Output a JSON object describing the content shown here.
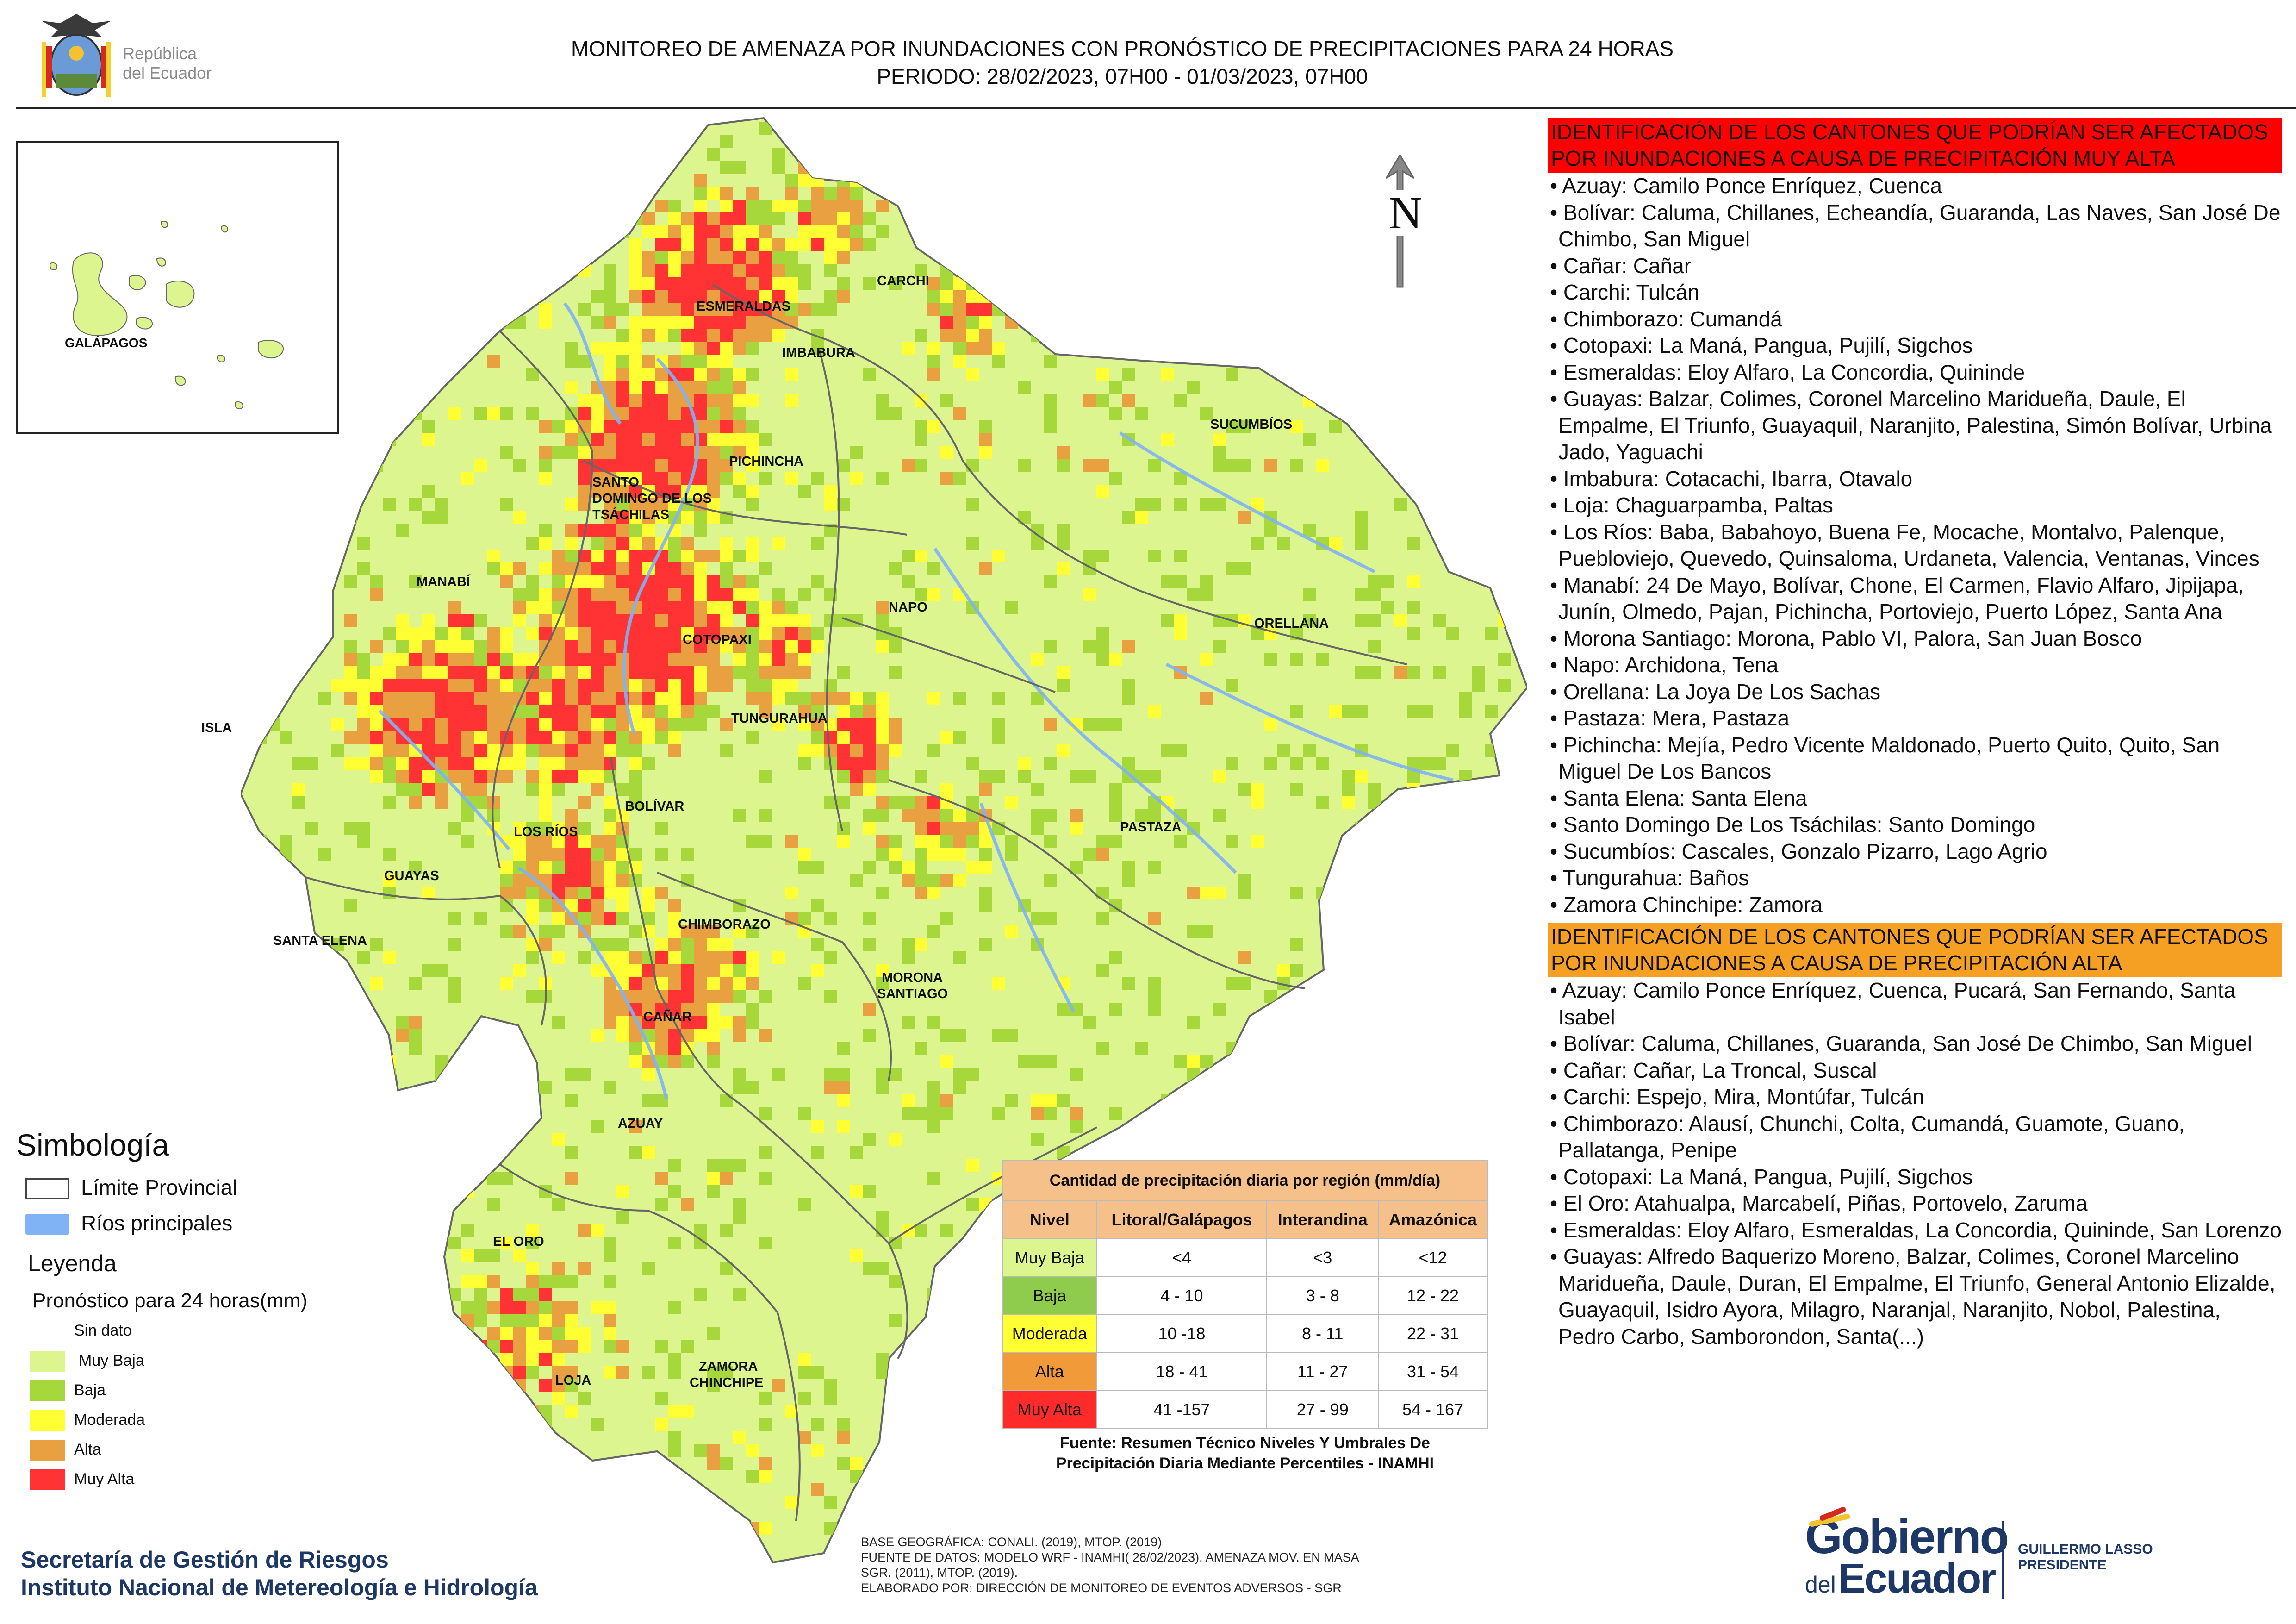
{
  "header": {
    "title_line1": "MONITOREO DE AMENAZA POR INUNDACIONES  CON PRONÓSTICO DE  PRECIPITACIONES PARA 24 HORAS",
    "title_line2": "PERIODO: 28/02/2023, 07H00 - 01/03/2023, 07H00",
    "logo_text_line1": "República",
    "logo_text_line2": "del Ecuador"
  },
  "inset": {
    "label": "GALÁPAGOS"
  },
  "north_label": "N",
  "map": {
    "provinces": [
      "CARCHI",
      "ESMERALDAS",
      "IMBABURA",
      "SUCUMBÍOS",
      "PICHINCHA",
      "SANTO",
      "DOMINGO DE LOS",
      "TSÁCHILAS",
      "MANABÍ",
      "NAPO",
      "ORELLANA",
      "COTOPAXI",
      "ISLA",
      "TUNGURAHUA",
      "BOLÍVAR",
      "PASTAZA",
      "LOS RÍOS",
      "GUAYAS",
      "CHIMBORAZO",
      "SANTA ELENA",
      "MORONA",
      "SANTIAGO",
      "CAÑAR",
      "AZUAY",
      "EL ORO",
      "ZAMORA",
      "CHINCHIPE",
      "LOJA"
    ],
    "colors": {
      "sin_dato": "#ffffff",
      "muy_baja": "#dcf58e",
      "baja": "#a6d83b",
      "moderada": "#ffff33",
      "alta": "#e8a040",
      "muy_alta": "#ff3333",
      "border": "#666666",
      "rios": "#7fb3f5"
    }
  },
  "symbology": {
    "title": "Simbología",
    "limite": "Límite Provincial",
    "rios": "Ríos principales"
  },
  "legend": {
    "title": "Leyenda",
    "subtitle": "Pronóstico para 24 horas(mm)",
    "items": [
      "Sin dato",
      "Muy Baja",
      "Baja",
      "Moderada",
      "Alta",
      "Muy Alta"
    ]
  },
  "table": {
    "title": "Cantidad de precipitación diaria por región (mm/día)",
    "headers": [
      "Nivel",
      "Litoral/Galápagos",
      "Interandina",
      "Amazónica"
    ],
    "rows": [
      [
        "Muy Baja",
        "<4",
        "<3",
        "<12"
      ],
      [
        "Baja",
        "4 - 10",
        "3 - 8",
        "12 - 22"
      ],
      [
        "Moderada",
        "10 -18",
        "8 - 11",
        "22 - 31"
      ],
      [
        "Alta",
        "18 - 41",
        "11 - 27",
        "31 - 54"
      ],
      [
        "Muy Alta",
        "41 -157",
        "27 - 99",
        "54 - 167"
      ]
    ],
    "source_line1": "Fuente: Resumen Técnico Niveles Y Umbrales De",
    "source_line2": "Precipitación Diaria Mediante Percentiles - INAMHI"
  },
  "muy_alta": {
    "header": "IDENTIFICACIÓN DE LOS CANTONES QUE PODRÍAN SER AFECTADOS POR INUNDACIONES  A CAUSA DE PRECIPITACIÓN MUY ALTA",
    "items": [
      "• Azuay: Camilo Ponce Enríquez, Cuenca",
      "• Bolívar: Caluma, Chillanes, Echeandía, Guaranda, Las Naves, San José De Chimbo, San Miguel",
      "• Cañar: Cañar",
      "• Carchi: Tulcán",
      "• Chimborazo: Cumandá",
      "• Cotopaxi: La Maná, Pangua, Pujilí, Sigchos",
      "• Esmeraldas: Eloy Alfaro, La Concordia, Quininde",
      "• Guayas: Balzar, Colimes, Coronel Marcelino Maridueña, Daule, El Empalme, El Triunfo, Guayaquil, Naranjito, Palestina, Simón Bolívar, Urbina Jado, Yaguachi",
      "• Imbabura: Cotacachi, Ibarra, Otavalo",
      "• Loja: Chaguarpamba, Paltas",
      "• Los Ríos: Baba, Babahoyo, Buena Fe, Mocache, Montalvo, Palenque, Puebloviejo, Quevedo, Quinsaloma, Urdaneta, Valencia, Ventanas, Vinces",
      "• Manabí: 24 De Mayo, Bolívar, Chone, El Carmen, Flavio Alfaro, Jipijapa, Junín, Olmedo, Pajan, Pichincha, Portoviejo, Puerto López, Santa Ana",
      "• Morona Santiago: Morona, Pablo VI, Palora, San Juan Bosco",
      "• Napo: Archidona, Tena",
      "• Orellana: La Joya De Los Sachas",
      "• Pastaza: Mera, Pastaza",
      "• Pichincha: Mejía, Pedro Vicente Maldonado, Puerto Quito, Quito, San Miguel De Los Bancos",
      "• Santa Elena: Santa Elena",
      "• Santo Domingo De Los Tsáchilas: Santo Domingo",
      "• Sucumbíos: Cascales, Gonzalo Pizarro, Lago Agrio",
      "• Tungurahua: Baños",
      "• Zamora Chinchipe: Zamora"
    ]
  },
  "alta": {
    "header": "IDENTIFICACIÓN DE LOS CANTONES QUE  PODRÍAN SER AFECTADOS POR INUNDACIONES  A CAUSA DE PRECIPITACIÓN ALTA",
    "items": [
      "• Azuay: Camilo Ponce Enríquez, Cuenca, Pucará, San Fernando, Santa Isabel",
      "• Bolívar: Caluma, Chillanes, Guaranda, San José De Chimbo, San Miguel",
      "• Cañar: Cañar, La Troncal, Suscal",
      "• Carchi: Espejo, Mira, Montúfar, Tulcán",
      "• Chimborazo: Alausí, Chunchi, Colta, Cumandá, Guamote, Guano, Pallatanga, Penipe",
      "• Cotopaxi: La Maná, Pangua, Pujilí, Sigchos",
      "• El Oro: Atahualpa, Marcabelí, Piñas, Portovelo, Zaruma",
      "• Esmeraldas: Eloy Alfaro, Esmeraldas, La Concordia, Quininde, San Lorenzo",
      "• Guayas: Alfredo Baquerizo Moreno, Balzar, Colimes, Coronel Marcelino Maridueña, Daule, Duran, El Empalme, El Triunfo, General Antonio Elizalde, Guayaquil, Isidro Ayora, Milagro, Naranjal, Naranjito, Nobol, Palestina, Pedro Carbo, Samborondon, Santa(...)"
    ]
  },
  "footer": {
    "sgr_line1": "Secretaría de Gestión de Riesgos",
    "sgr_line2": "Instituto Nacional de Metereología e Hidrología",
    "base_line1": "BASE GEOGRÁFICA: CONALI. (2019), MTOP. (2019)",
    "base_line2": "FUENTE DE DATOS: MODELO WRF - INAMHI( 28/02/2023).  AMENAZA MOV. EN MASA",
    "base_line3": "SGR. (2011), MTOP. (2019).",
    "base_line4": "ELABORADO POR: DIRECCIÓN DE MONITOREO DE EVENTOS ADVERSOS - SGR",
    "gob_word1": "Gobierno",
    "gob_word2": "del",
    "gob_word3": "Ecuador",
    "sign_line1": "GUILLERMO LASSO",
    "sign_line2": "PRESIDENTE"
  }
}
